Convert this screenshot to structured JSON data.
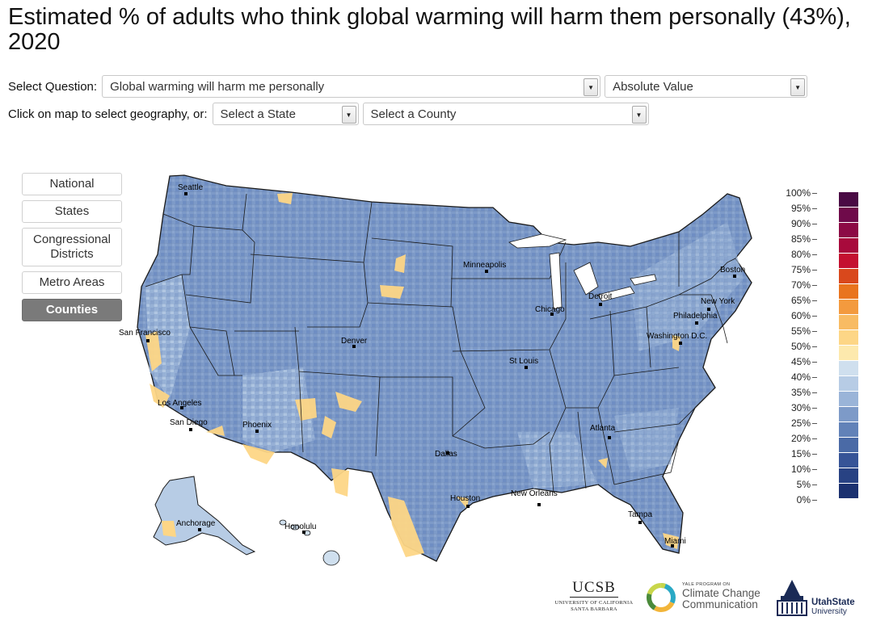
{
  "title": "Estimated % of adults who think global warming will harm them personally (43%), 2020",
  "controls": {
    "question_label": "Select Question:",
    "question_value": "Global warming will harm me personally",
    "measure_value": "Absolute Value",
    "geo_prompt": "Click on map to select geography, or:",
    "state_placeholder": "Select a State",
    "county_placeholder": "Select a County"
  },
  "geography_buttons": [
    {
      "label": "National",
      "active": false
    },
    {
      "label": "States",
      "active": false
    },
    {
      "label": "Congressional Districts",
      "active": false
    },
    {
      "label": "Metro Areas",
      "active": false
    },
    {
      "label": "Counties",
      "active": true
    }
  ],
  "cities": [
    "Seattle",
    "San Francisco",
    "Los Angeles",
    "San Diego",
    "Phoenix",
    "Denver",
    "Dallas",
    "Houston",
    "Minneapolis",
    "Chicago",
    "St Louis",
    "Detroit",
    "New Orleans",
    "Atlanta",
    "Tampa",
    "Miami",
    "Washington D.C.",
    "Philadelphia",
    "New York",
    "Boston",
    "Anchorage",
    "Honolulu"
  ],
  "legend": {
    "labels": [
      "100%",
      "95%",
      "90%",
      "85%",
      "80%",
      "75%",
      "70%",
      "65%",
      "60%",
      "55%",
      "50%",
      "45%",
      "40%",
      "35%",
      "30%",
      "25%",
      "20%",
      "15%",
      "10%",
      "5%",
      "0%"
    ],
    "colors": [
      "#4a0a44",
      "#6f0a4a",
      "#8c0a45",
      "#a80a3c",
      "#c41030",
      "#d9481c",
      "#e9741e",
      "#f39a3e",
      "#f8bb63",
      "#fdd686",
      "#fde9ad",
      "#cfdfee",
      "#b7cce5",
      "#9ab4d8",
      "#7d9ac8",
      "#6282b8",
      "#4a6aa6",
      "#375497",
      "#284283",
      "#1b3170",
      "#0f1f56"
    ]
  },
  "logos": {
    "ucsb": "UCSB",
    "ucsb_sub": "UNIVERSITY OF CALIFORNIA SANTA BARBARA",
    "yale_small": "YALE PROGRAM ON",
    "yale_line1": "Climate Change",
    "yale_line2": "Communication",
    "usu_line1": "UtahState",
    "usu_line2": "University"
  }
}
